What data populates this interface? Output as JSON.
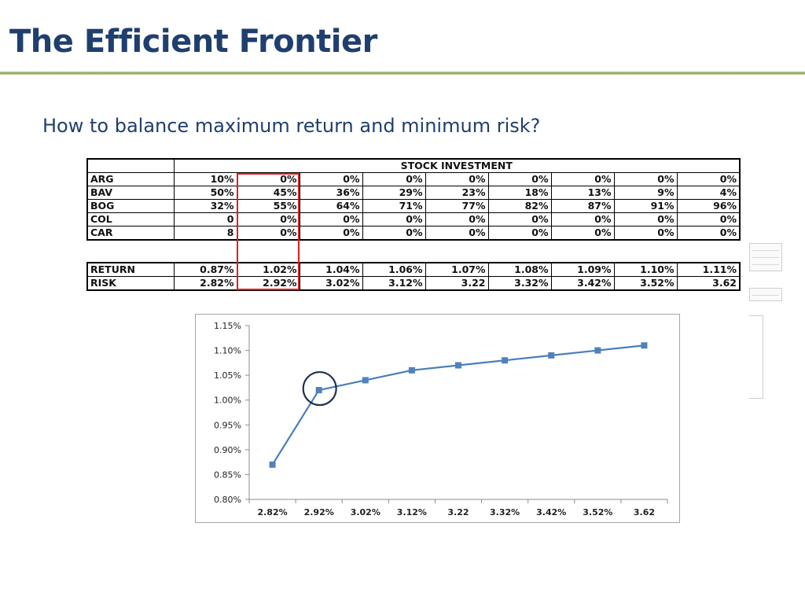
{
  "title": "The Efficient Frontier",
  "subtitle": "How to balance maximum return and minimum risk?",
  "stock_table": {
    "header": "STOCK INVESTMENT",
    "rows": [
      {
        "label": "ARG",
        "values": [
          "10%",
          "0%",
          "0%",
          "0%",
          "0%",
          "0%",
          "0%",
          "0%",
          "0%"
        ]
      },
      {
        "label": "BAV",
        "values": [
          "50%",
          "45%",
          "36%",
          "29%",
          "23%",
          "18%",
          "13%",
          "9%",
          "4%"
        ]
      },
      {
        "label": "BOG",
        "values": [
          "32%",
          "55%",
          "64%",
          "71%",
          "77%",
          "82%",
          "87%",
          "91%",
          "96%"
        ]
      },
      {
        "label": "COL",
        "values": [
          "0",
          "0%",
          "0%",
          "0%",
          "0%",
          "0%",
          "0%",
          "0%",
          "0%"
        ]
      },
      {
        "label": "CAR",
        "values": [
          "8",
          "0%",
          "0%",
          "0%",
          "0%",
          "0%",
          "0%",
          "0%",
          "0%"
        ]
      }
    ]
  },
  "rr_table": {
    "rows": [
      {
        "label": "RETURN",
        "values": [
          "0.87%",
          "1.02%",
          "1.04%",
          "1.06%",
          "1.07%",
          "1.08%",
          "1.09%",
          "1.10%",
          "1.11%"
        ]
      },
      {
        "label": "RISK",
        "values": [
          "2.82%",
          "2.92%",
          "3.02%",
          "3.12%",
          "3.22",
          "3.32%",
          "3.42%",
          "3.52%",
          "3.62"
        ]
      }
    ]
  },
  "highlighted_column": 1,
  "colors": {
    "title": "#1f3f6e",
    "highlight": "#e31d1d",
    "series": "#4a7ebb",
    "marker": "#4f81bd"
  },
  "chart_data": {
    "type": "line",
    "title": "",
    "xlabel": "",
    "ylabel": "",
    "categories": [
      "2.82%",
      "2.92%",
      "3.02%",
      "3.12%",
      "3.22",
      "3.32%",
      "3.42%",
      "3.52%",
      "3.62"
    ],
    "series": [
      {
        "values": [
          0.87,
          1.02,
          1.04,
          1.06,
          1.07,
          1.08,
          1.09,
          1.1,
          1.11
        ]
      }
    ],
    "ylim": [
      0.8,
      1.15
    ],
    "yticks": [
      "0.80%",
      "0.85%",
      "0.90%",
      "0.95%",
      "1.00%",
      "1.05%",
      "1.10%",
      "1.15%"
    ],
    "grid": false,
    "legend": "none",
    "annotation": {
      "type": "circle",
      "point_index": 1
    }
  }
}
